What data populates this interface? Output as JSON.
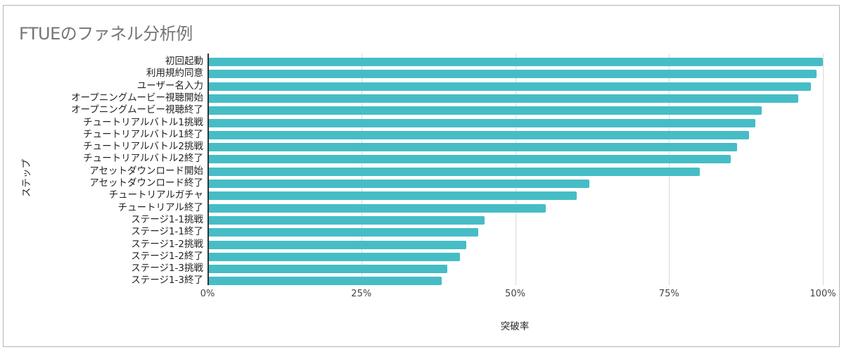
{
  "chart_data": {
    "type": "bar",
    "orientation": "horizontal",
    "title": "FTUEのファネル分析例",
    "xlabel": "突破率",
    "ylabel": "ステップ",
    "xlim": [
      0,
      100
    ],
    "x_ticks": [
      "0%",
      "25%",
      "50%",
      "75%",
      "100%"
    ],
    "grid": true,
    "legend": null,
    "bar_color": "#46bdc6",
    "categories": [
      "初回起動",
      "利用規約同意",
      "ユーザー名入力",
      "オープニングムービー視聴開始",
      "オープニングムービー視聴終了",
      "チュートリアルバトル1挑戦",
      "チュートリアルバトル1終了",
      "チュートリアルバトル2挑戦",
      "チュートリアルバトル2終了",
      "アセットダウンロード開始",
      "アセットダウンロード終了",
      "チュートリアルガチャ",
      "チュートリアル終了",
      "ステージ1-1挑戦",
      "ステージ1-1終了",
      "ステージ1-2挑戦",
      "ステージ1-2終了",
      "ステージ1-3挑戦",
      "ステージ1-3終了"
    ],
    "values": [
      100,
      99,
      98,
      96,
      90,
      89,
      88,
      86,
      85,
      80,
      62,
      60,
      55,
      45,
      44,
      42,
      41,
      39,
      38
    ],
    "unit": "%"
  }
}
